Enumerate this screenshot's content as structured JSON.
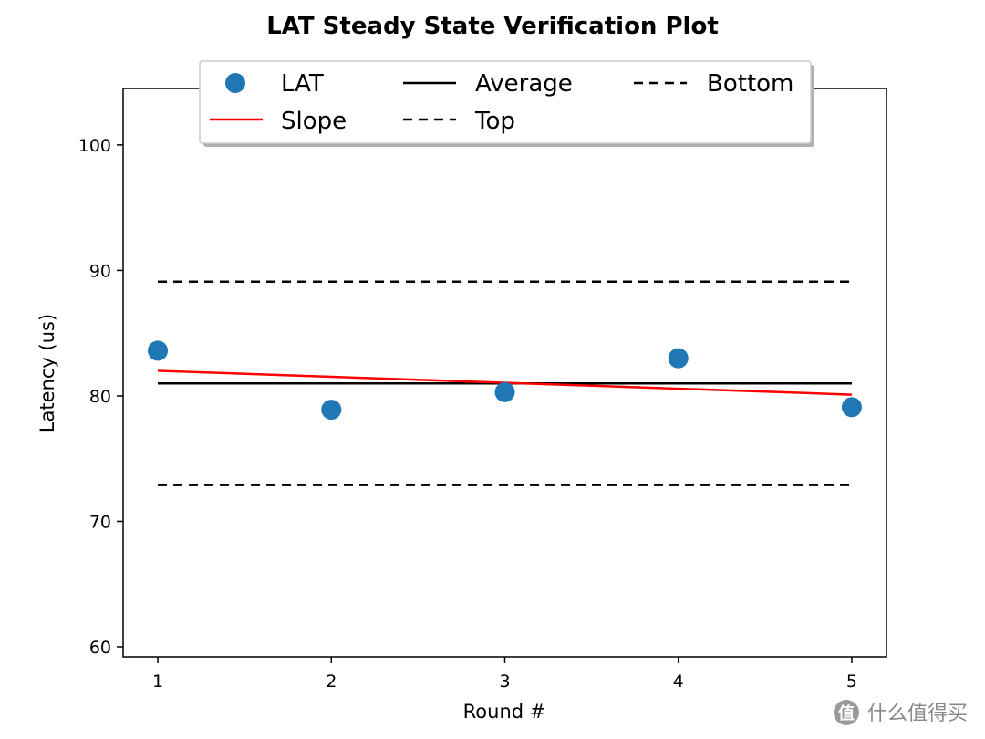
{
  "chart_data": {
    "type": "line",
    "title": "LAT Steady State Verification Plot",
    "xlabel": "Round #",
    "ylabel": "Latency (us)",
    "xlim": [
      0.8,
      5.2
    ],
    "ylim": [
      59.2,
      104.5
    ],
    "x_ticks": [
      1,
      2,
      3,
      4,
      5
    ],
    "y_ticks": [
      60,
      70,
      80,
      90,
      100
    ],
    "grid": false,
    "legend_position": "top-center",
    "series": [
      {
        "name": "LAT",
        "kind": "scatter",
        "color": "#1f77b4",
        "x": [
          1,
          2,
          3,
          4,
          5
        ],
        "y": [
          83.6,
          78.9,
          80.3,
          83.0,
          79.1
        ]
      },
      {
        "name": "Slope",
        "kind": "line",
        "color": "#ff0000",
        "x": [
          1,
          5
        ],
        "y": [
          82.0,
          80.1
        ]
      },
      {
        "name": "Average",
        "kind": "line",
        "color": "#000000",
        "x": [
          1,
          5
        ],
        "y": [
          81.0,
          81.0
        ]
      },
      {
        "name": "Top",
        "kind": "dashed",
        "color": "#000000",
        "x": [
          1,
          5
        ],
        "y": [
          89.1,
          89.1
        ]
      },
      {
        "name": "Bottom",
        "kind": "dashed",
        "color": "#000000",
        "x": [
          1,
          5
        ],
        "y": [
          72.9,
          72.9
        ]
      }
    ]
  },
  "watermark": {
    "text": "什么值得买",
    "icon": "zhi-logo-icon"
  }
}
